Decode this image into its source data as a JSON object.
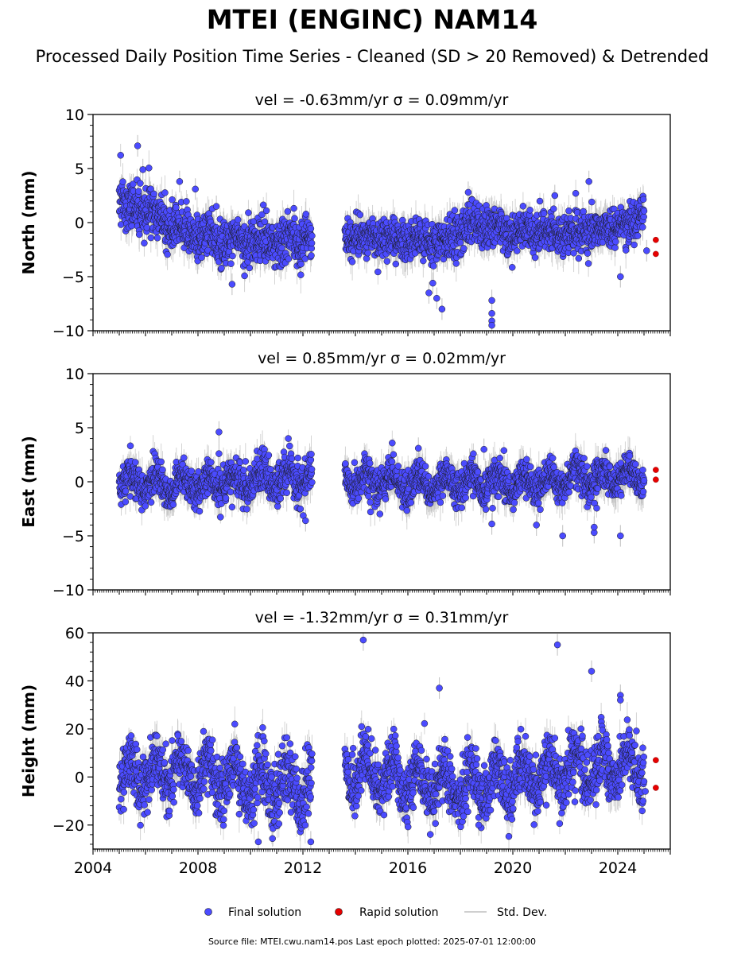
{
  "title": "MTEI (ENGINC) NAM14",
  "subtitle": "Processed Daily Position Time Series - Cleaned (SD > 20 Removed) & Detrended",
  "source_note": "Source file: MTEI.cwu.nam14.pos  Last epoch plotted: 2025-07-01 12:00:00",
  "legend": {
    "final": "Final solution",
    "rapid": "Rapid solution",
    "stddev": "Std. Dev."
  },
  "colors": {
    "final": "#4b4bff",
    "rapid": "#e60000",
    "errorbar": "#bfbfbf",
    "marker_edge": "#1a1a1a"
  },
  "chart_data": [
    {
      "type": "scatter",
      "velocity_label": "vel = -0.63mm/yr   σ = 0.09mm/yr",
      "ylabel": "North (mm)",
      "xlim": [
        2004.0,
        2026.0
      ],
      "ylim": [
        -10,
        10
      ],
      "yticks": [
        -10,
        -5,
        0,
        5,
        10
      ],
      "ytick_labels": [
        "−10",
        "−5",
        "0",
        "5",
        "10"
      ],
      "series": {
        "final": {
          "segments": [
            {
              "start": 2005.0,
              "end": 2012.35,
              "level": [
                [
                  2005.0,
                  2.2
                ],
                [
                  2005.5,
                  1.5
                ],
                [
                  2006.5,
                  0.3
                ],
                [
                  2007.5,
                  -1.0
                ],
                [
                  2009.0,
                  -1.8
                ],
                [
                  2011.0,
                  -1.9
                ],
                [
                  2012.35,
                  -1.6
                ]
              ],
              "noise": 1.1,
              "amp": 0.4
            },
            {
              "start": 2013.6,
              "end": 2025.0,
              "level": [
                [
                  2013.6,
                  -1.3
                ],
                [
                  2016.0,
                  -1.5
                ],
                [
                  2017.5,
                  -1.8
                ],
                [
                  2018.0,
                  -0.9
                ],
                [
                  2018.5,
                  -0.1
                ],
                [
                  2020.0,
                  -0.9
                ],
                [
                  2022.0,
                  -0.9
                ],
                [
                  2024.5,
                  -0.3
                ],
                [
                  2025.0,
                  1.5
                ]
              ],
              "noise": 0.9,
              "amp": 0.3
            }
          ],
          "outliers": [
            [
              2005.7,
              7.1
            ],
            [
              2005.9,
              4.9
            ],
            [
              2007.3,
              3.8
            ],
            [
              2007.9,
              3.1
            ],
            [
              2008.7,
              1.5
            ],
            [
              2009.3,
              -5.7
            ],
            [
              2016.8,
              -6.5
            ],
            [
              2016.95,
              -5.6
            ],
            [
              2017.1,
              -7.0
            ],
            [
              2017.3,
              -8.0
            ],
            [
              2018.3,
              2.8
            ],
            [
              2019.2,
              -7.2
            ],
            [
              2019.2,
              -9.1
            ],
            [
              2019.2,
              -9.5
            ],
            [
              2019.2,
              -8.4
            ],
            [
              2021.6,
              2.5
            ],
            [
              2022.9,
              3.8
            ],
            [
              2024.1,
              -5.0
            ],
            [
              2025.1,
              -2.6
            ]
          ]
        },
        "rapid": {
          "points": [
            [
              2025.45,
              -1.6
            ],
            [
              2025.45,
              -2.9
            ]
          ]
        }
      }
    },
    {
      "type": "scatter",
      "velocity_label": "vel = 0.85mm/yr   σ = 0.02mm/yr",
      "ylabel": "East (mm)",
      "xlim": [
        2004.0,
        2026.0
      ],
      "ylim": [
        -10,
        10
      ],
      "yticks": [
        -10,
        -5,
        0,
        5,
        10
      ],
      "ytick_labels": [
        "−10",
        "−5",
        "0",
        "5",
        "10"
      ],
      "series": {
        "final": {
          "segments": [
            {
              "start": 2005.0,
              "end": 2012.35,
              "level": [
                [
                  2005.0,
                  0.0
                ],
                [
                  2008.0,
                  -0.3
                ],
                [
                  2012.35,
                  0.3
                ]
              ],
              "noise": 0.9,
              "amp": 0.8
            },
            {
              "start": 2013.6,
              "end": 2025.0,
              "level": [
                [
                  2013.6,
                  0.3
                ],
                [
                  2016.0,
                  -0.2
                ],
                [
                  2020.0,
                  -0.1
                ],
                [
                  2025.0,
                  0.6
                ]
              ],
              "noise": 0.8,
              "amp": 0.8
            }
          ],
          "outliers": [
            [
              2008.8,
              4.6
            ],
            [
              2008.8,
              2.6
            ],
            [
              2012.1,
              -3.6
            ],
            [
              2016.4,
              3.1
            ],
            [
              2018.9,
              3.0
            ],
            [
              2019.2,
              -3.9
            ],
            [
              2020.9,
              -4.0
            ],
            [
              2021.9,
              -5.0
            ],
            [
              2023.1,
              -4.7
            ],
            [
              2023.1,
              -4.2
            ],
            [
              2024.1,
              -5.0
            ]
          ]
        },
        "rapid": {
          "points": [
            [
              2025.45,
              1.1
            ],
            [
              2025.45,
              0.2
            ]
          ]
        }
      }
    },
    {
      "type": "scatter",
      "velocity_label": "vel = -1.32mm/yr   σ = 0.31mm/yr",
      "ylabel": "Height (mm)",
      "xlim": [
        2004.0,
        2026.0
      ],
      "ylim": [
        -30,
        60
      ],
      "yticks": [
        -20,
        0,
        20,
        40,
        60
      ],
      "ytick_labels": [
        "−20",
        "0",
        "20",
        "40",
        "60"
      ],
      "xticks": [
        2004,
        2008,
        2012,
        2016,
        2020,
        2024
      ],
      "xtick_labels": [
        "2004",
        "2008",
        "2012",
        "2016",
        "2020",
        "2024"
      ],
      "series": {
        "final": {
          "segments": [
            {
              "start": 2005.0,
              "end": 2012.35,
              "level": [
                [
                  2005.0,
                  2.0
                ],
                [
                  2008.0,
                  1.0
                ],
                [
                  2010.0,
                  -3.0
                ],
                [
                  2012.35,
                  -4.0
                ]
              ],
              "noise": 6.5,
              "amp": 7.0
            },
            {
              "start": 2013.6,
              "end": 2025.0,
              "level": [
                [
                  2013.6,
                  3.0
                ],
                [
                  2016.0,
                  -1.0
                ],
                [
                  2018.0,
                  -4.0
                ],
                [
                  2020.0,
                  -1.0
                ],
                [
                  2022.0,
                  3.0
                ],
                [
                  2025.0,
                  5.0
                ]
              ],
              "noise": 6.0,
              "amp": 7.0
            }
          ],
          "outliers": [
            [
              2014.3,
              57.0
            ],
            [
              2017.2,
              37.0
            ],
            [
              2021.7,
              55.0
            ],
            [
              2023.0,
              44.0
            ],
            [
              2024.1,
              34.0
            ],
            [
              2024.1,
              32.0
            ],
            [
              2010.3,
              -27.0
            ],
            [
              2012.3,
              -27.0
            ],
            [
              2018.7,
              -20.0
            ],
            [
              2025.05,
              -6.0
            ]
          ]
        },
        "rapid": {
          "points": [
            [
              2025.45,
              7.0
            ],
            [
              2025.45,
              -4.5
            ]
          ]
        }
      }
    }
  ]
}
